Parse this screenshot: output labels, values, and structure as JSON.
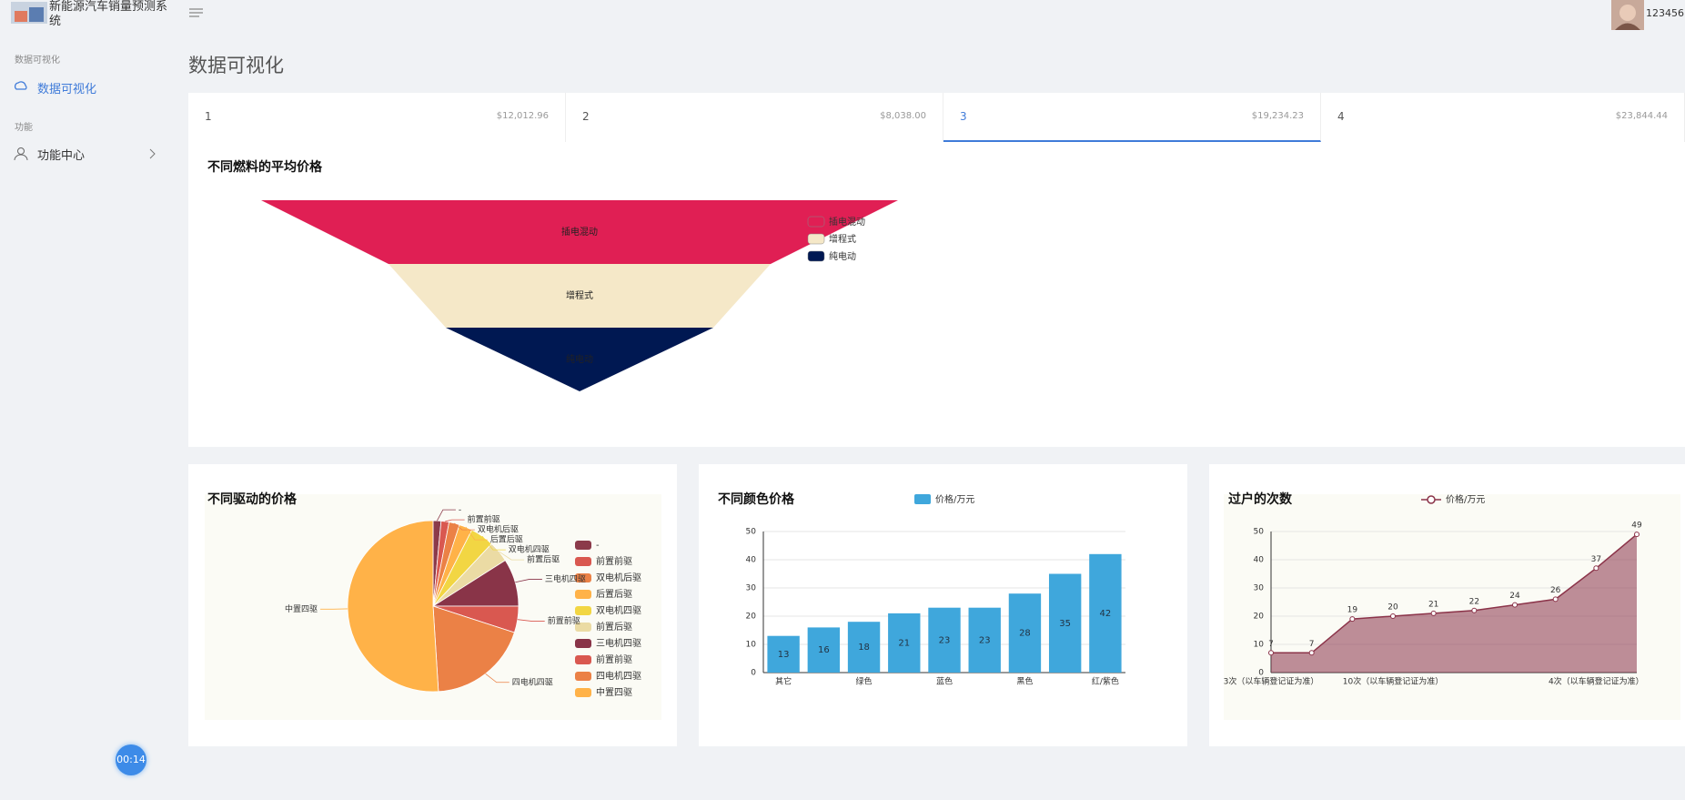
{
  "sidebar": {
    "logo_text": "新能源汽车销量预测系统",
    "sections": [
      {
        "title": "数据可视化",
        "items": [
          "数据可视化"
        ]
      },
      {
        "title": "功能",
        "items": [
          "功能中心"
        ]
      }
    ]
  },
  "header": {
    "username": "123456"
  },
  "page_title": "数据可视化",
  "tabs": [
    {
      "label": "1",
      "amount": "$12,012.96"
    },
    {
      "label": "2",
      "amount": "$8,038.00"
    },
    {
      "label": "3",
      "amount": "$19,234.23"
    },
    {
      "label": "4",
      "amount": "$23,844.44"
    }
  ],
  "timer": "00:14",
  "chart_data": [
    {
      "type": "funnel",
      "title": "不同燃料的平均价格",
      "categories": [
        "插电混动",
        "增程式",
        "纯电动"
      ],
      "values": [
        100,
        60,
        42
      ],
      "colors": [
        "#e01f54",
        "#f5e8c8",
        "#001852"
      ]
    },
    {
      "type": "pie",
      "title": "不同驱动的价格",
      "categories": [
        "-",
        "前置前驱",
        "双电机后驱",
        "后置后驱",
        "双电机四驱",
        "前置后驱",
        "三电机四驱",
        "前置前驱",
        "四电机四驱",
        "中置四驱"
      ],
      "values": [
        1.5,
        1.5,
        2,
        2.5,
        4.5,
        4,
        9,
        5,
        19,
        51
      ],
      "colors": [
        "#8b3a4a",
        "#d95850",
        "#eb8146",
        "#ffb248",
        "#f2d643",
        "#ebdba4",
        "#893448",
        "#d95850",
        "#eb8146",
        "#ffb248"
      ]
    },
    {
      "type": "bar",
      "title": "不同颜色价格",
      "categories": [
        "其它",
        null,
        "绿色",
        null,
        "蓝色",
        null,
        "黑色",
        null,
        "红/紫色"
      ],
      "series": [
        {
          "name": "价格/万元",
          "color": "#3fa7dc",
          "values": [
            13,
            16,
            18,
            21,
            23,
            23,
            28,
            35,
            42
          ]
        }
      ],
      "ylim": [
        0,
        50
      ],
      "yticks": [
        0,
        10,
        20,
        30,
        40,
        50
      ],
      "grid": true
    },
    {
      "type": "line",
      "title": "过户的次数",
      "categories": [
        "3次（以车辆登记证为准）",
        null,
        null,
        "10次（以车辆登记证为准）",
        null,
        null,
        null,
        null,
        "4次（以车辆登记证为准）",
        null
      ],
      "series": [
        {
          "name": "价格/万元",
          "color": "#8b3349",
          "values": [
            7,
            7,
            19,
            20,
            21,
            22,
            24,
            26,
            37,
            49
          ]
        }
      ],
      "ylim": [
        0,
        50
      ],
      "yticks": [
        0,
        10,
        20,
        30,
        40,
        50
      ],
      "grid": true,
      "area": true
    }
  ]
}
